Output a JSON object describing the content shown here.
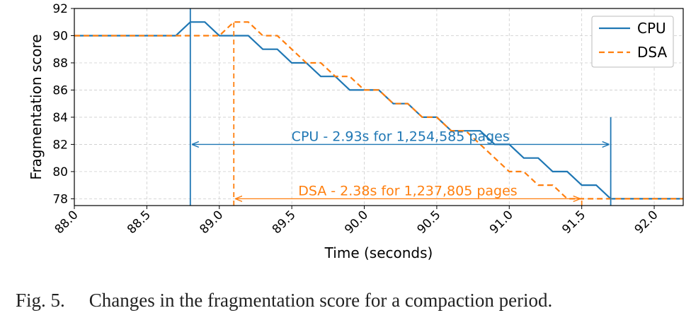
{
  "chart_data": {
    "type": "line",
    "title": "",
    "xlabel": "Time (seconds)",
    "ylabel": "Fragmentation score",
    "xlim": [
      88.0,
      92.2
    ],
    "ylim": [
      77.5,
      92.0
    ],
    "xticks": [
      88.0,
      88.5,
      89.0,
      89.5,
      90.0,
      90.5,
      91.0,
      91.5,
      92.0
    ],
    "xtick_labels": [
      "88.0",
      "88.5",
      "89.0",
      "89.5",
      "90.0",
      "90.5",
      "91.0",
      "91.5",
      "92.0"
    ],
    "yticks": [
      78,
      80,
      82,
      84,
      86,
      88,
      90,
      92
    ],
    "ytick_labels": [
      "78",
      "80",
      "82",
      "84",
      "86",
      "88",
      "90",
      "92"
    ],
    "grid": true,
    "legend_position": "top-right",
    "series": [
      {
        "name": "CPU",
        "color": "#1f77b4",
        "style": "solid",
        "x": [
          88.0,
          88.7,
          88.8,
          88.9,
          89.0,
          89.2,
          89.3,
          89.4,
          89.5,
          89.6,
          89.7,
          89.8,
          89.9,
          90.0,
          90.1,
          90.2,
          90.3,
          90.4,
          90.5,
          90.6,
          90.7,
          90.8,
          90.9,
          91.0,
          91.1,
          91.2,
          91.3,
          91.4,
          91.5,
          91.6,
          91.7,
          92.2
        ],
        "y": [
          90,
          90,
          91,
          91,
          90,
          90,
          89,
          89,
          88,
          88,
          87,
          87,
          86,
          86,
          86,
          85,
          85,
          84,
          84,
          83,
          83,
          83,
          82,
          82,
          81,
          81,
          80,
          80,
          79,
          79,
          78,
          78
        ]
      },
      {
        "name": "DSA",
        "color": "#ff7f0e",
        "style": "dashed",
        "x": [
          88.0,
          89.0,
          89.1,
          89.2,
          89.3,
          89.4,
          89.5,
          89.6,
          89.7,
          89.8,
          89.9,
          90.0,
          90.1,
          90.2,
          90.3,
          90.4,
          90.5,
          90.6,
          90.7,
          90.8,
          90.9,
          91.0,
          91.1,
          91.2,
          91.3,
          91.4,
          91.5,
          92.2
        ],
        "y": [
          90,
          90,
          91,
          91,
          90,
          90,
          89,
          88,
          88,
          87,
          87,
          86,
          86,
          85,
          85,
          84,
          84,
          83,
          83,
          82,
          81,
          80,
          80,
          79,
          79,
          78,
          78,
          78
        ]
      }
    ],
    "markers": [
      {
        "series": "CPU",
        "x": 88.8,
        "y_top": 92.0
      },
      {
        "series": "CPU",
        "x": 91.7,
        "y_top": 84.0
      },
      {
        "series": "DSA",
        "x": 89.1,
        "y_top": 91.0
      },
      {
        "series": "DSA",
        "x": 91.5,
        "y_top": 78.0
      }
    ],
    "annotations": [
      {
        "series": "CPU",
        "text": "CPU - 2.93s for 1,254,585 pages",
        "x_start": 88.8,
        "x_end": 91.7,
        "y": 82.0
      },
      {
        "series": "DSA",
        "text": "DSA - 2.38s for 1,237,805 pages",
        "x_start": 89.1,
        "x_end": 91.5,
        "y": 78.0
      }
    ]
  },
  "caption": {
    "number": "Fig. 5.",
    "text": "Changes in the fragmentation score for a compaction period."
  }
}
